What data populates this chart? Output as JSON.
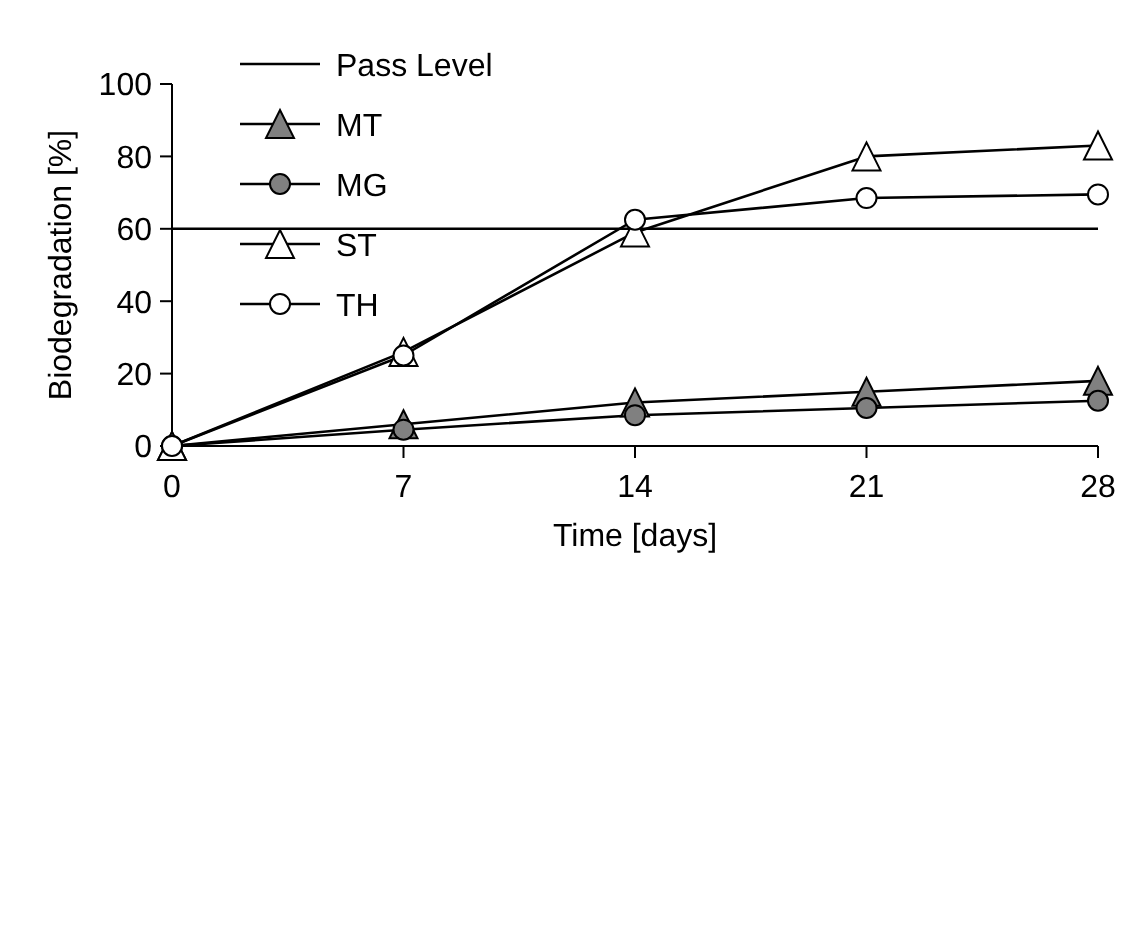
{
  "chart_data": {
    "type": "line",
    "xlabel": "Time [days]",
    "ylabel": "Biodegradation [%]",
    "x": [
      0,
      7,
      14,
      21,
      28
    ],
    "xlim": [
      0,
      28
    ],
    "xticks": [
      0,
      7,
      14,
      21,
      28
    ],
    "ylim": [
      0,
      100
    ],
    "yticks": [
      0,
      20,
      40,
      60,
      80,
      100
    ],
    "grid": false,
    "legend": "top left",
    "line_style": "solid",
    "ref_lines": [
      {
        "axis": "y",
        "value": 60,
        "label": "Pass Level",
        "color": "#000000"
      }
    ],
    "series": [
      {
        "name": "MT",
        "color": "#808080",
        "marker": "triangle",
        "values": [
          0,
          6,
          12,
          15,
          18
        ]
      },
      {
        "name": "MG",
        "color": "#808080",
        "marker": "circle",
        "values": [
          0,
          4.5,
          8.5,
          10.5,
          12.5
        ]
      },
      {
        "name": "ST",
        "color": "#ffffff",
        "marker": "triangle",
        "values": [
          0,
          26,
          59,
          80,
          83
        ]
      },
      {
        "name": "TH",
        "color": "#ffffff",
        "marker": "circle",
        "values": [
          0,
          25,
          62.5,
          68.5,
          69.5
        ]
      }
    ]
  }
}
